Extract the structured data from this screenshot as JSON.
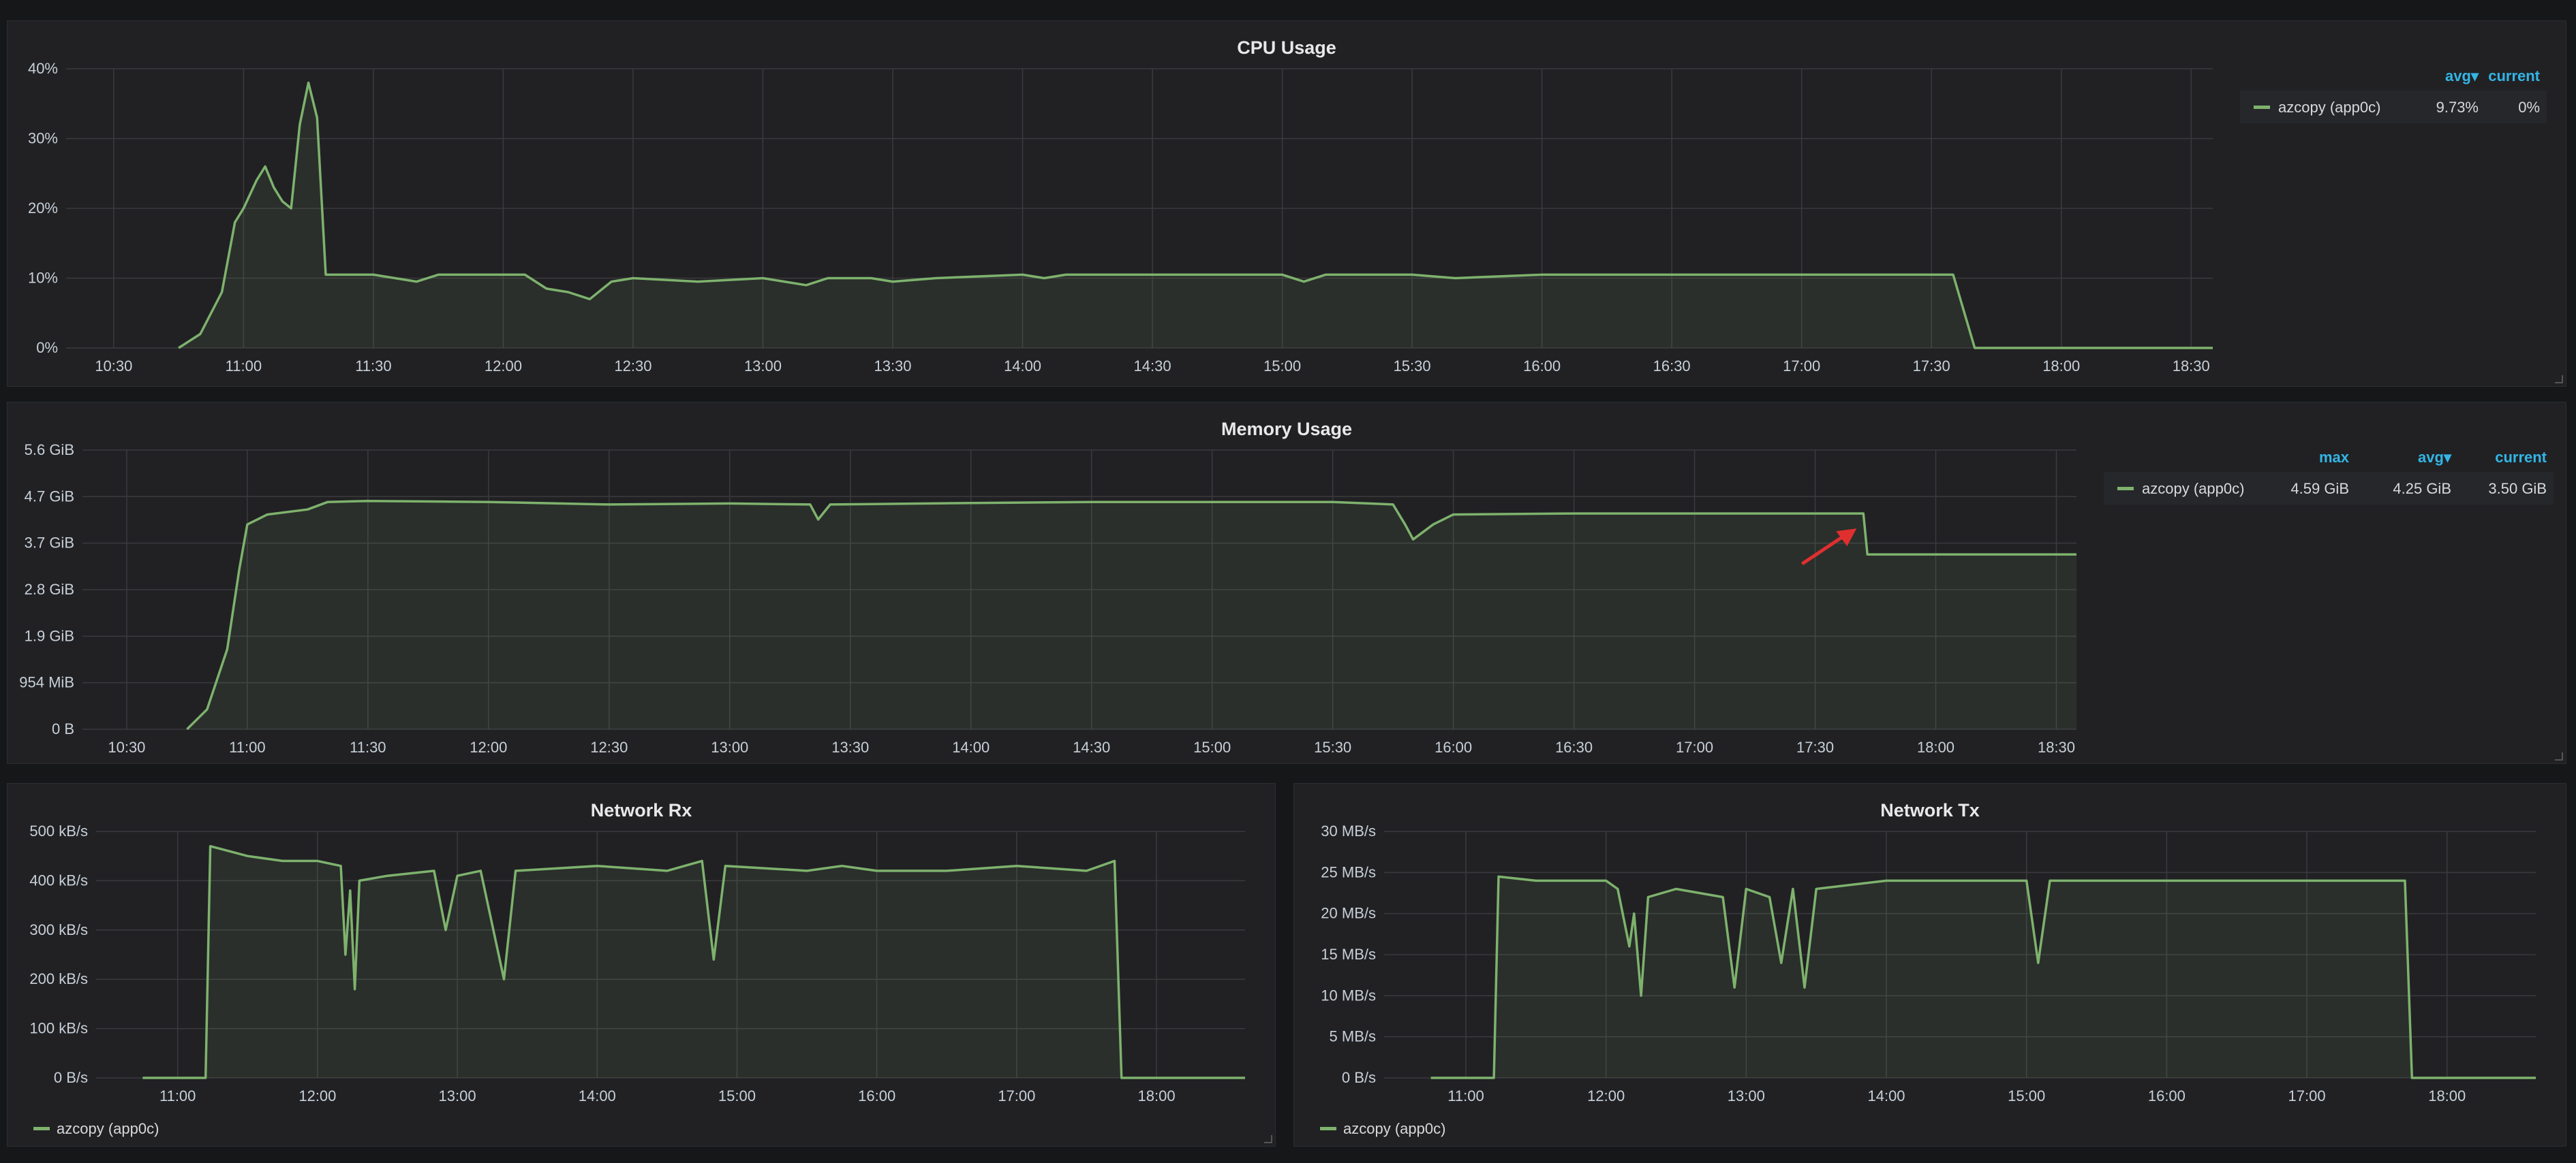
{
  "colors": {
    "series": "#7eb26d",
    "annotation_arrow": "#e02f2f",
    "legend_header": "#33b5e5"
  },
  "panels": {
    "cpu": {
      "title": "CPU Usage",
      "legend": {
        "headers": {
          "avg": "avg▾",
          "current": "current"
        },
        "series": "azcopy (app0c)",
        "avg": "9.73%",
        "current": "0%"
      }
    },
    "memory": {
      "title": "Memory Usage",
      "legend": {
        "headers": {
          "max": "max",
          "avg": "avg▾",
          "current": "current"
        },
        "series": "azcopy (app0c)",
        "max": "4.59 GiB",
        "avg": "4.25 GiB",
        "current": "3.50 GiB"
      }
    },
    "rx": {
      "title": "Network Rx",
      "legend": {
        "series": "azcopy (app0c)"
      }
    },
    "tx": {
      "title": "Network Tx",
      "legend": {
        "series": "azcopy (app0c)"
      }
    }
  },
  "chart_data": [
    {
      "id": "cpu",
      "type": "area",
      "title": "CPU Usage",
      "x_ticks": [
        "10:30",
        "11:00",
        "11:30",
        "12:00",
        "12:30",
        "13:00",
        "13:30",
        "14:00",
        "14:30",
        "15:00",
        "15:30",
        "16:00",
        "16:30",
        "17:00",
        "17:30",
        "18:00",
        "18:30"
      ],
      "y_ticks": [
        "0%",
        "10%",
        "20%",
        "30%",
        "40%"
      ],
      "ylim": [
        0,
        40
      ],
      "x_range": [
        "10:19",
        "18:35"
      ],
      "series": [
        {
          "name": "azcopy (app0c)",
          "points": [
            [
              "10:45",
              0
            ],
            [
              "10:50",
              2
            ],
            [
              "10:55",
              8
            ],
            [
              "10:58",
              18
            ],
            [
              "11:00",
              20
            ],
            [
              "11:03",
              24
            ],
            [
              "11:05",
              26
            ],
            [
              "11:07",
              23
            ],
            [
              "11:09",
              21
            ],
            [
              "11:11",
              20
            ],
            [
              "11:13",
              32
            ],
            [
              "11:15",
              38
            ],
            [
              "11:17",
              33
            ],
            [
              "11:19",
              10.5
            ],
            [
              "11:30",
              10.5
            ],
            [
              "11:35",
              10
            ],
            [
              "11:40",
              9.5
            ],
            [
              "11:45",
              10.5
            ],
            [
              "12:05",
              10.5
            ],
            [
              "12:10",
              8.5
            ],
            [
              "12:15",
              8
            ],
            [
              "12:20",
              7
            ],
            [
              "12:25",
              9.5
            ],
            [
              "12:30",
              10
            ],
            [
              "12:45",
              9.5
            ],
            [
              "13:00",
              10
            ],
            [
              "13:10",
              9
            ],
            [
              "13:15",
              10
            ],
            [
              "13:25",
              10
            ],
            [
              "13:30",
              9.5
            ],
            [
              "13:40",
              10
            ],
            [
              "14:00",
              10.5
            ],
            [
              "14:05",
              10
            ],
            [
              "14:10",
              10.5
            ],
            [
              "14:30",
              10.5
            ],
            [
              "15:00",
              10.5
            ],
            [
              "15:05",
              9.5
            ],
            [
              "15:10",
              10.5
            ],
            [
              "15:30",
              10.5
            ],
            [
              "15:40",
              10
            ],
            [
              "16:00",
              10.5
            ],
            [
              "16:30",
              10.5
            ],
            [
              "17:00",
              10.5
            ],
            [
              "17:30",
              10.5
            ],
            [
              "17:35",
              10.5
            ],
            [
              "17:40",
              0
            ],
            [
              "18:35",
              0
            ]
          ]
        }
      ]
    },
    {
      "id": "memory",
      "type": "area",
      "title": "Memory Usage",
      "x_ticks": [
        "10:30",
        "11:00",
        "11:30",
        "12:00",
        "12:30",
        "13:00",
        "13:30",
        "14:00",
        "14:30",
        "15:00",
        "15:30",
        "16:00",
        "16:30",
        "17:00",
        "17:30",
        "18:00",
        "18:30"
      ],
      "y_ticks": [
        "0 B",
        "954 MiB",
        "1.9 GiB",
        "2.8 GiB",
        "3.7 GiB",
        "4.7 GiB",
        "5.6 GiB"
      ],
      "y_tick_values_gib": [
        0,
        0.9316,
        1.863,
        2.795,
        3.726,
        4.658,
        5.589
      ],
      "ylim": [
        0,
        5.589
      ],
      "x_range": [
        "10:19",
        "18:35"
      ],
      "annotation": "red arrow pointing at drop near 17:42",
      "series": [
        {
          "name": "azcopy (app0c)",
          "points_gib": [
            [
              "10:45",
              0
            ],
            [
              "10:50",
              0.4
            ],
            [
              "10:55",
              1.6
            ],
            [
              "10:58",
              3.2
            ],
            [
              "11:00",
              4.1
            ],
            [
              "11:05",
              4.3
            ],
            [
              "11:15",
              4.4
            ],
            [
              "11:20",
              4.55
            ],
            [
              "11:30",
              4.57
            ],
            [
              "12:00",
              4.55
            ],
            [
              "12:30",
              4.5
            ],
            [
              "13:00",
              4.52
            ],
            [
              "13:20",
              4.5
            ],
            [
              "13:22",
              4.2
            ],
            [
              "13:25",
              4.5
            ],
            [
              "14:00",
              4.53
            ],
            [
              "14:30",
              4.55
            ],
            [
              "15:00",
              4.55
            ],
            [
              "15:30",
              4.55
            ],
            [
              "15:45",
              4.5
            ],
            [
              "15:48",
              4.1
            ],
            [
              "15:50",
              3.8
            ],
            [
              "15:55",
              4.1
            ],
            [
              "16:00",
              4.3
            ],
            [
              "16:30",
              4.32
            ],
            [
              "17:00",
              4.32
            ],
            [
              "17:30",
              4.32
            ],
            [
              "17:42",
              4.32
            ],
            [
              "17:43",
              3.5
            ],
            [
              "18:35",
              3.5
            ]
          ]
        }
      ]
    },
    {
      "id": "rx",
      "type": "area",
      "title": "Network Rx",
      "x_ticks": [
        "11:00",
        "12:00",
        "13:00",
        "14:00",
        "15:00",
        "16:00",
        "17:00",
        "18:00"
      ],
      "y_ticks": [
        "0 B/s",
        "100 kB/s",
        "200 kB/s",
        "300 kB/s",
        "400 kB/s",
        "500 kB/s"
      ],
      "ylim": [
        0,
        500
      ],
      "x_range": [
        "10:25",
        "18:38"
      ],
      "series": [
        {
          "name": "azcopy (app0c)",
          "points": [
            [
              "10:45",
              0
            ],
            [
              "11:12",
              0
            ],
            [
              "11:14",
              470
            ],
            [
              "11:30",
              450
            ],
            [
              "11:45",
              440
            ],
            [
              "12:00",
              440
            ],
            [
              "12:10",
              430
            ],
            [
              "12:12",
              250
            ],
            [
              "12:14",
              380
            ],
            [
              "12:16",
              180
            ],
            [
              "12:18",
              400
            ],
            [
              "12:30",
              410
            ],
            [
              "12:50",
              420
            ],
            [
              "12:55",
              300
            ],
            [
              "13:00",
              410
            ],
            [
              "13:10",
              420
            ],
            [
              "13:20",
              200
            ],
            [
              "13:25",
              420
            ],
            [
              "14:00",
              430
            ],
            [
              "14:30",
              420
            ],
            [
              "14:45",
              440
            ],
            [
              "14:50",
              240
            ],
            [
              "14:55",
              430
            ],
            [
              "15:30",
              420
            ],
            [
              "15:45",
              430
            ],
            [
              "16:00",
              420
            ],
            [
              "16:30",
              420
            ],
            [
              "17:00",
              430
            ],
            [
              "17:30",
              420
            ],
            [
              "17:42",
              440
            ],
            [
              "17:45",
              0
            ],
            [
              "18:38",
              0
            ]
          ]
        }
      ]
    },
    {
      "id": "tx",
      "type": "area",
      "title": "Network Tx",
      "x_ticks": [
        "11:00",
        "12:00",
        "13:00",
        "14:00",
        "15:00",
        "16:00",
        "17:00",
        "18:00"
      ],
      "y_ticks": [
        "0 B/s",
        "5 MB/s",
        "10 MB/s",
        "15 MB/s",
        "20 MB/s",
        "25 MB/s",
        "30 MB/s"
      ],
      "ylim": [
        0,
        30
      ],
      "x_range": [
        "10:25",
        "18:38"
      ],
      "series": [
        {
          "name": "azcopy (app0c)",
          "points": [
            [
              "10:45",
              0
            ],
            [
              "11:12",
              0
            ],
            [
              "11:14",
              24.5
            ],
            [
              "11:30",
              24
            ],
            [
              "12:00",
              24
            ],
            [
              "12:05",
              23
            ],
            [
              "12:10",
              16
            ],
            [
              "12:12",
              20
            ],
            [
              "12:15",
              10
            ],
            [
              "12:18",
              22
            ],
            [
              "12:30",
              23
            ],
            [
              "12:50",
              22
            ],
            [
              "12:55",
              11
            ],
            [
              "13:00",
              23
            ],
            [
              "13:10",
              22
            ],
            [
              "13:15",
              14
            ],
            [
              "13:20",
              23
            ],
            [
              "13:25",
              11
            ],
            [
              "13:30",
              23
            ],
            [
              "14:00",
              24
            ],
            [
              "14:30",
              24
            ],
            [
              "15:00",
              24
            ],
            [
              "15:05",
              14
            ],
            [
              "15:10",
              24
            ],
            [
              "15:30",
              24
            ],
            [
              "16:00",
              24
            ],
            [
              "16:30",
              24
            ],
            [
              "17:00",
              24
            ],
            [
              "17:30",
              24
            ],
            [
              "17:42",
              24
            ],
            [
              "17:45",
              0
            ],
            [
              "18:38",
              0
            ]
          ]
        }
      ]
    }
  ]
}
